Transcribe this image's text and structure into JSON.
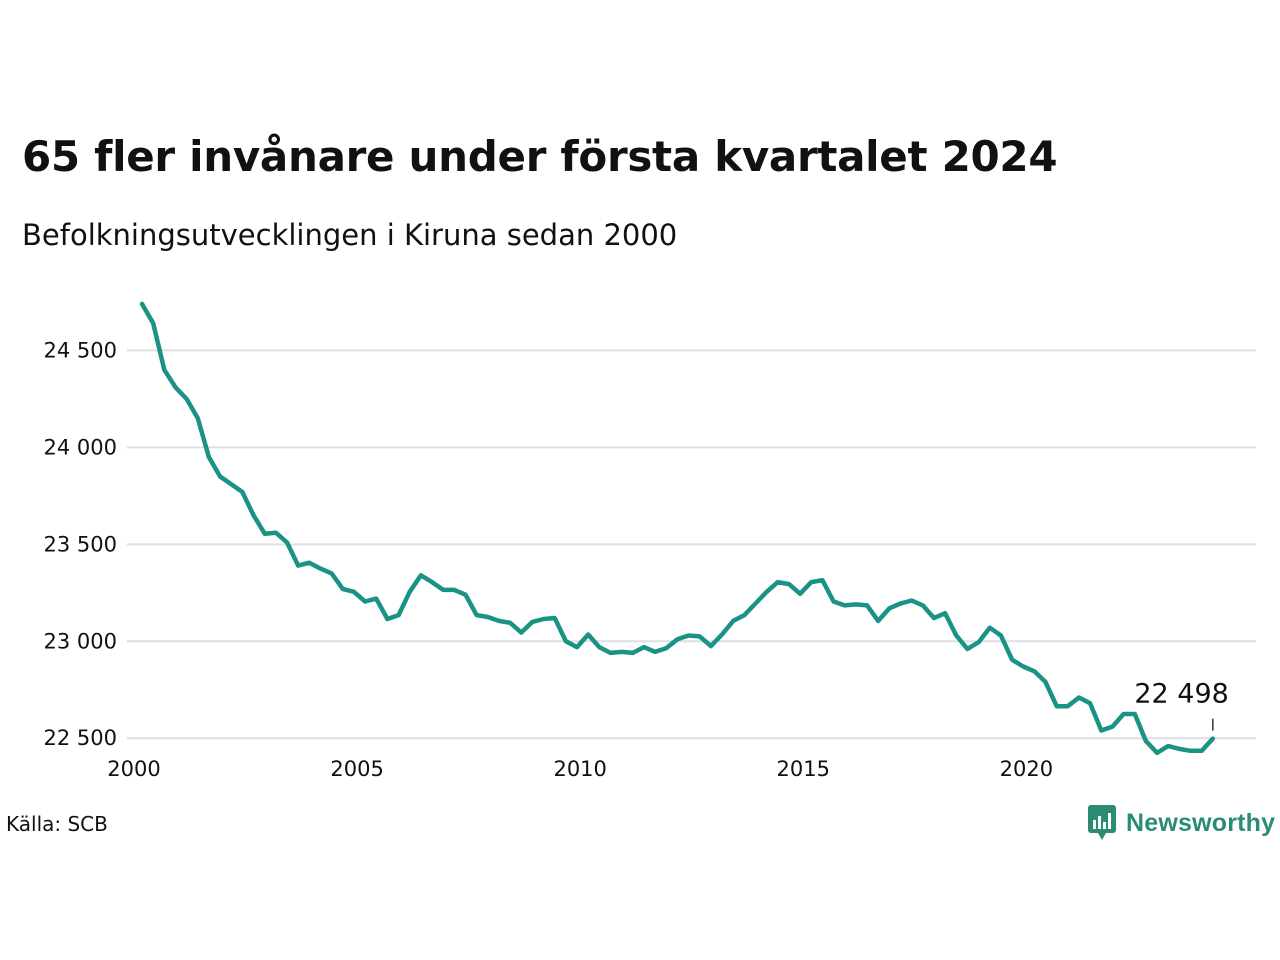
{
  "title": "65 fler invånare under första kvartalet 2024",
  "subtitle": "Befolkningsutvecklingen i Kiruna sedan 2000",
  "source": "Källa: SCB",
  "brand": {
    "name": "Newsworthy",
    "icon": "newsworthy-logo-icon",
    "color": "#2b8c74"
  },
  "chart_data": {
    "type": "line",
    "line_color": "#1a9384",
    "grid": true,
    "xlim": [
      2000,
      2024.25
    ],
    "ylim": [
      22300,
      24760
    ],
    "x_ticks": [
      {
        "value": 2000,
        "label": "2000"
      },
      {
        "value": 2005,
        "label": "2005"
      },
      {
        "value": 2010,
        "label": "2010"
      },
      {
        "value": 2015,
        "label": "2015"
      },
      {
        "value": 2020,
        "label": "2020"
      }
    ],
    "y_ticks": [
      {
        "value": 22500,
        "label": "22 500"
      },
      {
        "value": 23000,
        "label": "23 000"
      },
      {
        "value": 23500,
        "label": "23 500"
      },
      {
        "value": 24000,
        "label": "24 000"
      },
      {
        "value": 24500,
        "label": "24 500"
      }
    ],
    "annotation": {
      "x": 2024,
      "y": 22498,
      "label": "22 498"
    },
    "series": [
      {
        "x_start": 2000,
        "x_step": 0.25,
        "values": [
          24740,
          24640,
          24400,
          24310,
          24250,
          24150,
          23950,
          23850,
          23810,
          23770,
          23650,
          23555,
          23560,
          23510,
          23390,
          23405,
          23375,
          23350,
          23270,
          23255,
          23205,
          23220,
          23115,
          23135,
          23255,
          23340,
          23305,
          23265,
          23265,
          23240,
          23135,
          23125,
          23105,
          23095,
          23045,
          23100,
          23115,
          23120,
          23000,
          22970,
          23035,
          22970,
          22940,
          22945,
          22940,
          22970,
          22945,
          22965,
          23010,
          23030,
          23025,
          22975,
          23035,
          23105,
          23135,
          23195,
          23255,
          23305,
          23295,
          23245,
          23305,
          23315,
          23205,
          23185,
          23190,
          23185,
          23105,
          23170,
          23195,
          23210,
          23185,
          23120,
          23145,
          23030,
          22960,
          22995,
          23070,
          23030,
          22905,
          22870,
          22845,
          22790,
          22665,
          22665,
          22710,
          22680,
          22540,
          22560,
          22625,
          22625,
          22485,
          22425,
          22460,
          22445,
          22435,
          22435,
          22498
        ]
      }
    ]
  }
}
